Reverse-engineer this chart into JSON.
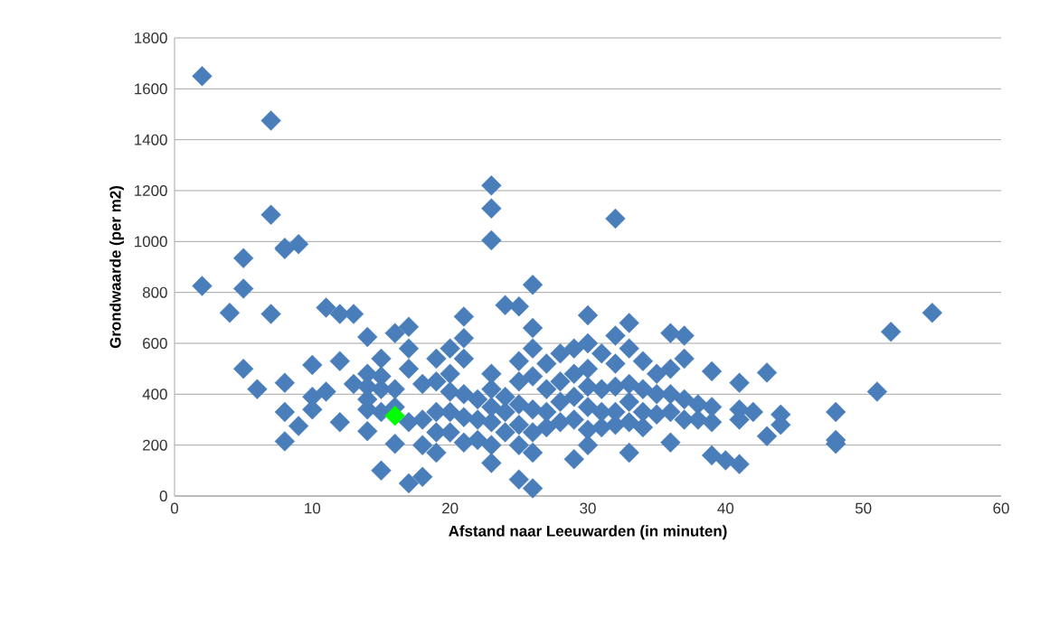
{
  "chart_data": {
    "type": "scatter",
    "xlabel": "Afstand naar Leeuwarden (in minuten)",
    "ylabel": "Grondwaarde (per m2)",
    "xlim": [
      0,
      60
    ],
    "xticks": [
      0,
      10,
      20,
      30,
      40,
      50,
      60
    ],
    "ylim": [
      0,
      1800
    ],
    "yticks": [
      0,
      200,
      400,
      600,
      800,
      1000,
      1200,
      1400,
      1600,
      1800
    ],
    "grid": "y",
    "marker": "diamond",
    "series": [
      {
        "color": "#4a7ebb",
        "x": [
          2,
          2,
          4,
          5,
          5,
          5,
          6,
          7,
          7,
          7,
          8,
          8,
          8,
          8,
          8,
          9,
          9,
          10,
          10,
          10,
          11,
          11,
          12,
          12,
          12,
          13,
          13,
          14,
          14,
          14,
          14,
          14,
          14,
          15,
          15,
          15,
          15,
          15,
          16,
          16,
          16,
          16,
          17,
          17,
          17,
          17,
          17,
          18,
          18,
          18,
          18,
          19,
          19,
          19,
          19,
          19,
          20,
          20,
          20,
          20,
          20,
          21,
          21,
          21,
          21,
          21,
          21,
          22,
          22,
          22,
          23,
          23,
          23,
          23,
          23,
          23,
          23,
          23,
          23,
          24,
          24,
          24,
          24,
          25,
          25,
          25,
          25,
          25,
          25,
          25,
          26,
          26,
          26,
          26,
          26,
          26,
          26,
          26,
          27,
          27,
          27,
          27,
          28,
          28,
          28,
          28,
          29,
          29,
          29,
          29,
          29,
          30,
          30,
          30,
          30,
          30,
          30,
          30,
          31,
          31,
          31,
          31,
          32,
          32,
          32,
          32,
          32,
          32,
          33,
          33,
          33,
          33,
          33,
          33,
          34,
          34,
          34,
          34,
          35,
          35,
          35,
          36,
          36,
          36,
          36,
          36,
          37,
          37,
          37,
          37,
          38,
          38,
          39,
          39,
          39,
          39,
          40,
          41,
          41,
          41,
          41,
          42,
          43,
          43,
          44,
          44,
          48,
          48,
          48,
          51,
          52,
          55
        ],
        "values": [
          1650,
          825,
          720,
          935,
          815,
          500,
          420,
          1475,
          1105,
          715,
          975,
          970,
          445,
          330,
          215,
          990,
          275,
          515,
          390,
          340,
          740,
          410,
          715,
          530,
          290,
          715,
          440,
          625,
          480,
          430,
          380,
          340,
          255,
          540,
          470,
          420,
          330,
          100,
          640,
          420,
          350,
          205,
          665,
          580,
          500,
          290,
          50,
          440,
          300,
          200,
          75,
          540,
          450,
          330,
          250,
          170,
          580,
          480,
          410,
          330,
          250,
          705,
          620,
          540,
          400,
          310,
          210,
          380,
          300,
          220,
          1220,
          1130,
          1005,
          480,
          420,
          350,
          290,
          200,
          130,
          750,
          390,
          330,
          250,
          745,
          530,
          450,
          360,
          280,
          200,
          65,
          830,
          660,
          580,
          470,
          340,
          250,
          170,
          30,
          520,
          420,
          330,
          270,
          560,
          450,
          370,
          290,
          580,
          480,
          390,
          300,
          145,
          710,
          600,
          500,
          430,
          350,
          260,
          200,
          560,
          420,
          330,
          270,
          1090,
          630,
          520,
          430,
          330,
          280,
          680,
          580,
          440,
          370,
          290,
          170,
          530,
          420,
          330,
          270,
          480,
          400,
          320,
          640,
          500,
          400,
          330,
          210,
          630,
          540,
          380,
          300,
          360,
          300,
          490,
          350,
          290,
          160,
          140,
          445,
          340,
          300,
          125,
          330,
          485,
          235,
          320,
          280,
          330,
          220,
          205,
          410,
          645,
          720
        ]
      },
      {
        "color": "#00ff00",
        "x": [
          16
        ],
        "values": [
          315
        ]
      }
    ]
  }
}
